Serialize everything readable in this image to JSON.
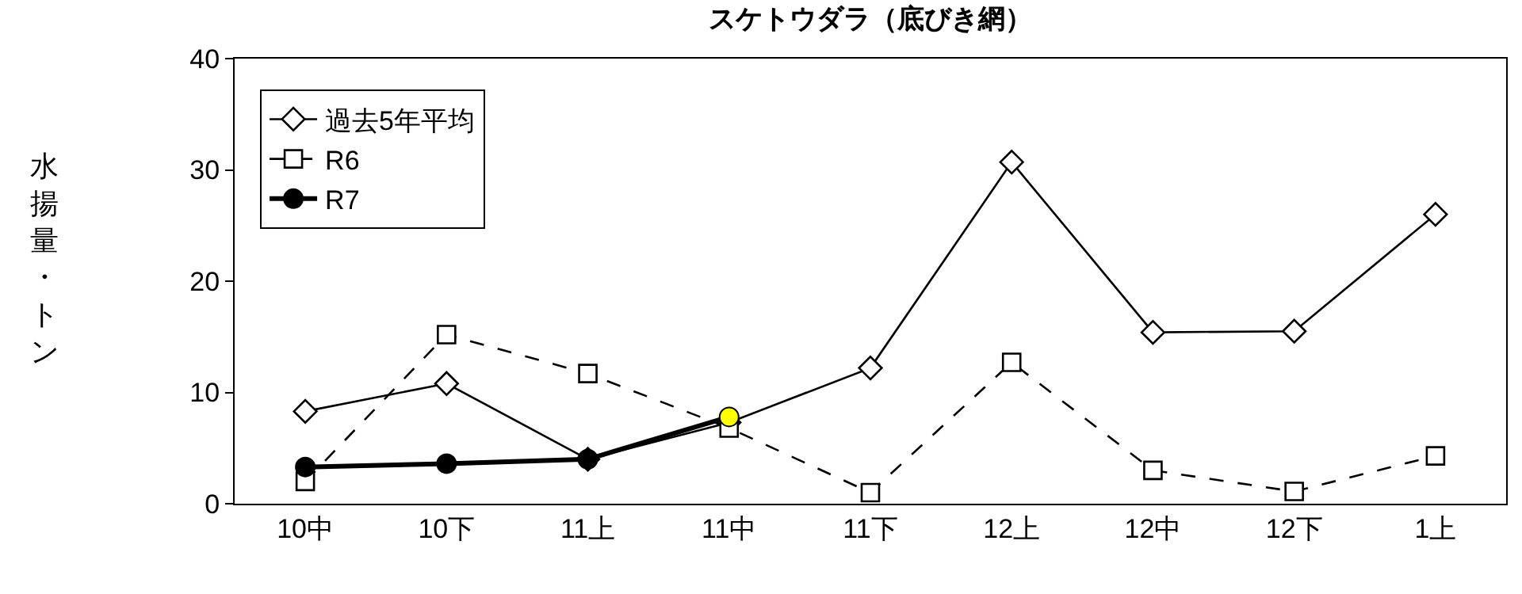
{
  "chart_data": {
    "type": "line",
    "title": "スケトウダラ（底びき網）",
    "ylabel": "水揚量・トン",
    "categories": [
      "10中",
      "10下",
      "11上",
      "11中",
      "11下",
      "12上",
      "12中",
      "12下",
      "1上"
    ],
    "series": [
      {
        "name": "過去5年平均",
        "color": "#000000",
        "marker": "diamond",
        "line_style": "solid",
        "values": [
          8.3,
          10.8,
          4.0,
          7.3,
          12.2,
          30.7,
          15.4,
          15.5,
          26.0
        ]
      },
      {
        "name": "R6",
        "color": "#000000",
        "marker": "square",
        "line_style": "dashed",
        "values": [
          2.0,
          15.2,
          11.7,
          6.8,
          1.0,
          12.7,
          3.0,
          1.1,
          4.3
        ]
      },
      {
        "name": "R7",
        "color": "#000000",
        "colors": [
          "#000000",
          "#000000",
          "#000000",
          "#ffff00",
          null,
          null,
          null,
          null,
          null
        ],
        "marker": "circle",
        "line_style": "solid",
        "values": [
          3.3,
          3.6,
          4.0,
          7.8,
          null,
          null,
          null,
          null,
          null
        ]
      }
    ],
    "ylim": [
      0,
      40
    ],
    "yticks": [
      0,
      10,
      20,
      30,
      40
    ],
    "grid": false,
    "legend": "top left"
  }
}
